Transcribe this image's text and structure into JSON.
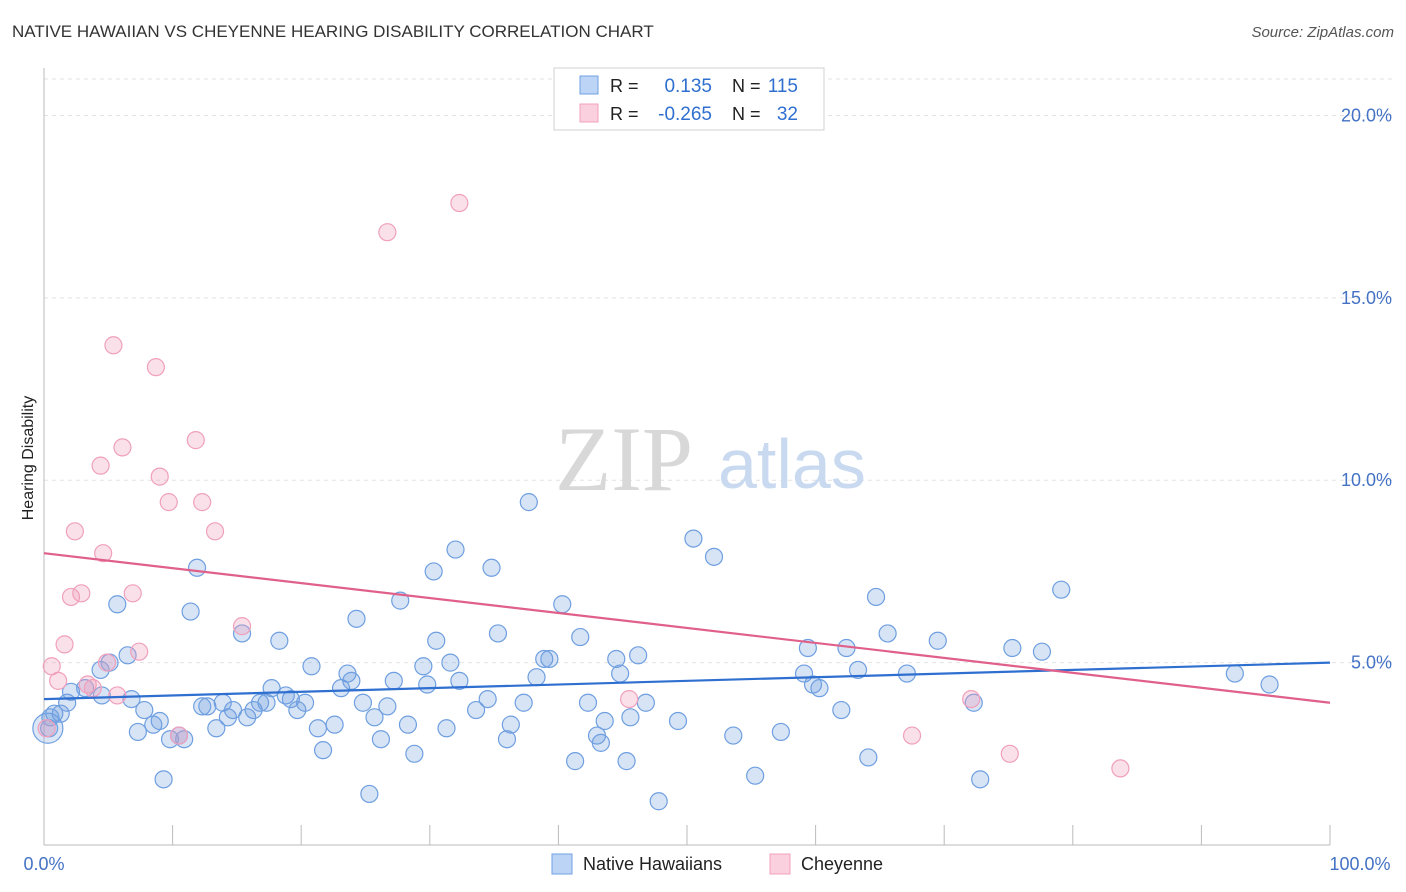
{
  "header": {
    "title": "NATIVE HAWAIIAN VS CHEYENNE HEARING DISABILITY CORRELATION CHART",
    "source": "Source: ZipAtlas.com"
  },
  "watermark": {
    "zip": "ZIP",
    "atlas": "atlas"
  },
  "legend": {
    "r_label": "R =",
    "n_label": "N =",
    "rows": [
      {
        "r": "0.135",
        "n": "115"
      },
      {
        "r": "-0.265",
        "n": "32"
      }
    ]
  },
  "chart_data": {
    "type": "scatter",
    "title": "NATIVE HAWAIIAN VS CHEYENNE HEARING DISABILITY CORRELATION CHART",
    "xlabel": "",
    "ylabel": "Hearing Disability",
    "xlim": [
      0,
      100
    ],
    "ylim": [
      0,
      21
    ],
    "y_ticks": [
      5,
      10,
      15,
      20
    ],
    "y_tick_labels": [
      "5.0%",
      "10.0%",
      "15.0%",
      "20.0%"
    ],
    "x_tick_labels": [
      "0.0%",
      "100.0%"
    ],
    "grid": true,
    "colors": {
      "blue": "#6f9fe0",
      "pink": "#f0a0bc",
      "blue_line": "#2f6fd0",
      "pink_line": "#e0608a"
    },
    "series": [
      {
        "name": "Native Hawaiians",
        "color": "#6f9fe0",
        "trend": [
          [
            0,
            4.0
          ],
          [
            100,
            5.0
          ]
        ],
        "points": [
          [
            0.4,
            3.2
          ],
          [
            0.5,
            3.5
          ],
          [
            0.8,
            3.6
          ],
          [
            1.3,
            3.6
          ],
          [
            1.8,
            3.9
          ],
          [
            2.1,
            4.2
          ],
          [
            3.2,
            4.3
          ],
          [
            4.4,
            4.8
          ],
          [
            4.5,
            4.1
          ],
          [
            5.1,
            5.0
          ],
          [
            5.7,
            6.6
          ],
          [
            6.5,
            5.2
          ],
          [
            6.8,
            4.0
          ],
          [
            7.3,
            3.1
          ],
          [
            7.8,
            3.7
          ],
          [
            8.5,
            3.3
          ],
          [
            9.0,
            3.4
          ],
          [
            9.3,
            1.8
          ],
          [
            9.8,
            2.9
          ],
          [
            10.5,
            3.0
          ],
          [
            10.9,
            2.9
          ],
          [
            11.4,
            6.4
          ],
          [
            11.9,
            7.6
          ],
          [
            12.3,
            3.8
          ],
          [
            12.7,
            3.8
          ],
          [
            13.4,
            3.2
          ],
          [
            13.9,
            3.9
          ],
          [
            14.3,
            3.5
          ],
          [
            14.7,
            3.7
          ],
          [
            15.4,
            5.8
          ],
          [
            15.8,
            3.5
          ],
          [
            16.3,
            3.7
          ],
          [
            16.8,
            3.9
          ],
          [
            17.3,
            3.9
          ],
          [
            17.7,
            4.3
          ],
          [
            18.3,
            5.6
          ],
          [
            18.8,
            4.1
          ],
          [
            19.2,
            4.0
          ],
          [
            19.7,
            3.7
          ],
          [
            20.3,
            3.9
          ],
          [
            20.8,
            4.9
          ],
          [
            21.3,
            3.2
          ],
          [
            21.7,
            2.6
          ],
          [
            22.6,
            3.3
          ],
          [
            23.1,
            4.3
          ],
          [
            23.6,
            4.7
          ],
          [
            23.9,
            4.5
          ],
          [
            24.3,
            6.2
          ],
          [
            24.8,
            3.9
          ],
          [
            25.3,
            1.4
          ],
          [
            25.7,
            3.5
          ],
          [
            26.2,
            2.9
          ],
          [
            26.7,
            3.8
          ],
          [
            27.2,
            4.5
          ],
          [
            27.7,
            6.7
          ],
          [
            28.3,
            3.3
          ],
          [
            28.8,
            2.5
          ],
          [
            29.5,
            4.9
          ],
          [
            29.8,
            4.4
          ],
          [
            30.3,
            7.5
          ],
          [
            30.5,
            5.6
          ],
          [
            31.3,
            3.2
          ],
          [
            31.6,
            5.0
          ],
          [
            32.0,
            8.1
          ],
          [
            32.3,
            4.5
          ],
          [
            33.6,
            3.7
          ],
          [
            34.5,
            4.0
          ],
          [
            34.8,
            7.6
          ],
          [
            35.3,
            5.8
          ],
          [
            36.0,
            2.9
          ],
          [
            36.3,
            3.3
          ],
          [
            37.3,
            3.9
          ],
          [
            37.7,
            9.4
          ],
          [
            38.3,
            4.6
          ],
          [
            38.9,
            5.1
          ],
          [
            39.3,
            5.1
          ],
          [
            40.3,
            6.6
          ],
          [
            41.3,
            2.3
          ],
          [
            41.7,
            5.7
          ],
          [
            42.3,
            3.9
          ],
          [
            43.0,
            3.0
          ],
          [
            43.3,
            2.8
          ],
          [
            43.6,
            3.4
          ],
          [
            44.5,
            5.1
          ],
          [
            44.8,
            4.7
          ],
          [
            45.3,
            2.3
          ],
          [
            45.6,
            3.5
          ],
          [
            46.2,
            5.2
          ],
          [
            46.8,
            3.9
          ],
          [
            47.8,
            1.2
          ],
          [
            49.3,
            3.4
          ],
          [
            50.5,
            8.4
          ],
          [
            52.1,
            7.9
          ],
          [
            53.6,
            3.0
          ],
          [
            55.3,
            1.9
          ],
          [
            57.3,
            3.1
          ],
          [
            59.1,
            4.7
          ],
          [
            59.4,
            5.4
          ],
          [
            59.8,
            4.4
          ],
          [
            60.3,
            4.3
          ],
          [
            62.0,
            3.7
          ],
          [
            62.4,
            5.4
          ],
          [
            63.3,
            4.8
          ],
          [
            64.1,
            2.4
          ],
          [
            64.7,
            6.8
          ],
          [
            65.6,
            5.8
          ],
          [
            67.1,
            4.7
          ],
          [
            69.5,
            5.6
          ],
          [
            72.3,
            3.9
          ],
          [
            72.8,
            1.8
          ],
          [
            75.3,
            5.4
          ],
          [
            77.6,
            5.3
          ],
          [
            79.1,
            7.0
          ],
          [
            92.6,
            4.7
          ],
          [
            95.3,
            4.4
          ]
        ]
      },
      {
        "name": "Cheyenne",
        "color": "#f0a0bc",
        "trend": [
          [
            0,
            8.0
          ],
          [
            100,
            3.9
          ]
        ],
        "points": [
          [
            0.2,
            3.2
          ],
          [
            0.6,
            4.9
          ],
          [
            1.1,
            4.5
          ],
          [
            1.6,
            5.5
          ],
          [
            2.1,
            6.8
          ],
          [
            2.4,
            8.6
          ],
          [
            2.9,
            6.9
          ],
          [
            3.4,
            4.4
          ],
          [
            3.8,
            4.3
          ],
          [
            4.4,
            10.4
          ],
          [
            4.6,
            8.0
          ],
          [
            4.9,
            5.0
          ],
          [
            5.4,
            13.7
          ],
          [
            5.7,
            4.1
          ],
          [
            6.1,
            10.9
          ],
          [
            6.9,
            6.9
          ],
          [
            7.4,
            5.3
          ],
          [
            8.7,
            13.1
          ],
          [
            9.0,
            10.1
          ],
          [
            9.7,
            9.4
          ],
          [
            10.5,
            3.0
          ],
          [
            11.8,
            11.1
          ],
          [
            12.3,
            9.4
          ],
          [
            13.3,
            8.6
          ],
          [
            15.4,
            6.0
          ],
          [
            26.7,
            16.8
          ],
          [
            32.3,
            17.6
          ],
          [
            45.5,
            4.0
          ],
          [
            67.5,
            3.0
          ],
          [
            72.1,
            4.0
          ],
          [
            75.1,
            2.5
          ],
          [
            83.7,
            2.1
          ]
        ]
      }
    ]
  }
}
